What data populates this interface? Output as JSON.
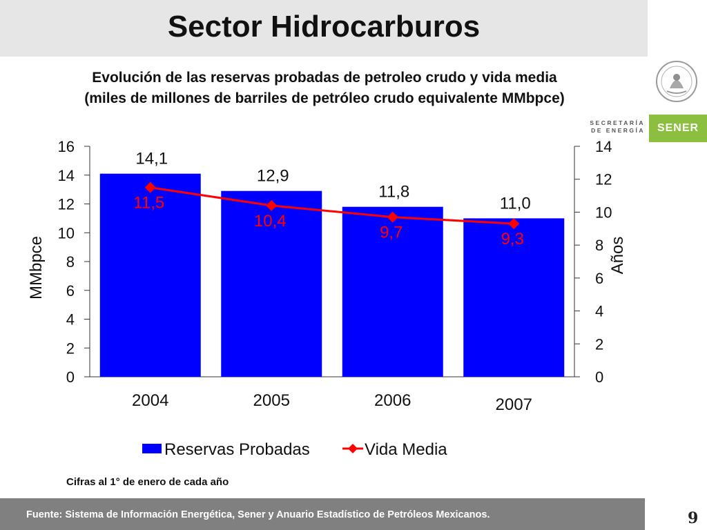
{
  "header": {
    "title": "Sector Hidrocarburos",
    "subtitle_line1": "Evolución de las reservas probadas de petroleo crudo y vida media",
    "subtitle_line2": "(miles de millones de barriles de petróleo crudo equivalente MMbpce)"
  },
  "logo": {
    "dept_line1": "SECRETARÍA",
    "dept_line2": "DE ENERGÍA",
    "brand": "SENER",
    "brand_color": "#8cbf3f"
  },
  "chart_data": {
    "type": "bar",
    "categories": [
      "2004",
      "2005",
      "2006",
      "2007"
    ],
    "series": [
      {
        "name": "Reservas Probadas",
        "kind": "bar",
        "axis": "left",
        "color": "#0000ff",
        "values": [
          14.1,
          12.9,
          11.8,
          11.0
        ],
        "labels": [
          "14,1",
          "12,9",
          "11,8",
          "11,0"
        ]
      },
      {
        "name": "Vida Media",
        "kind": "line",
        "axis": "right",
        "color": "#ff0000",
        "values": [
          11.5,
          10.4,
          9.7,
          9.3
        ],
        "labels": [
          "11,5",
          "10,4",
          "9,7",
          "9,3"
        ]
      }
    ],
    "ylabel": "MMbpce",
    "ylim": [
      0,
      16
    ],
    "yticks": [
      "0",
      "2",
      "4",
      "6",
      "8",
      "10",
      "12",
      "14",
      "16"
    ],
    "y2label": "Años",
    "y2lim": [
      0,
      14
    ],
    "y2ticks": [
      "0",
      "2",
      "4",
      "6",
      "8",
      "10",
      "12",
      "14"
    ],
    "grid": false,
    "legend_position": "bottom"
  },
  "footnote": "Cifras al 1° de enero de cada año",
  "footer": {
    "source": "Fuente: Sistema de Información Energética, Sener y Anuario Estadístico de Petróleos Mexicanos."
  },
  "page_number": "9"
}
